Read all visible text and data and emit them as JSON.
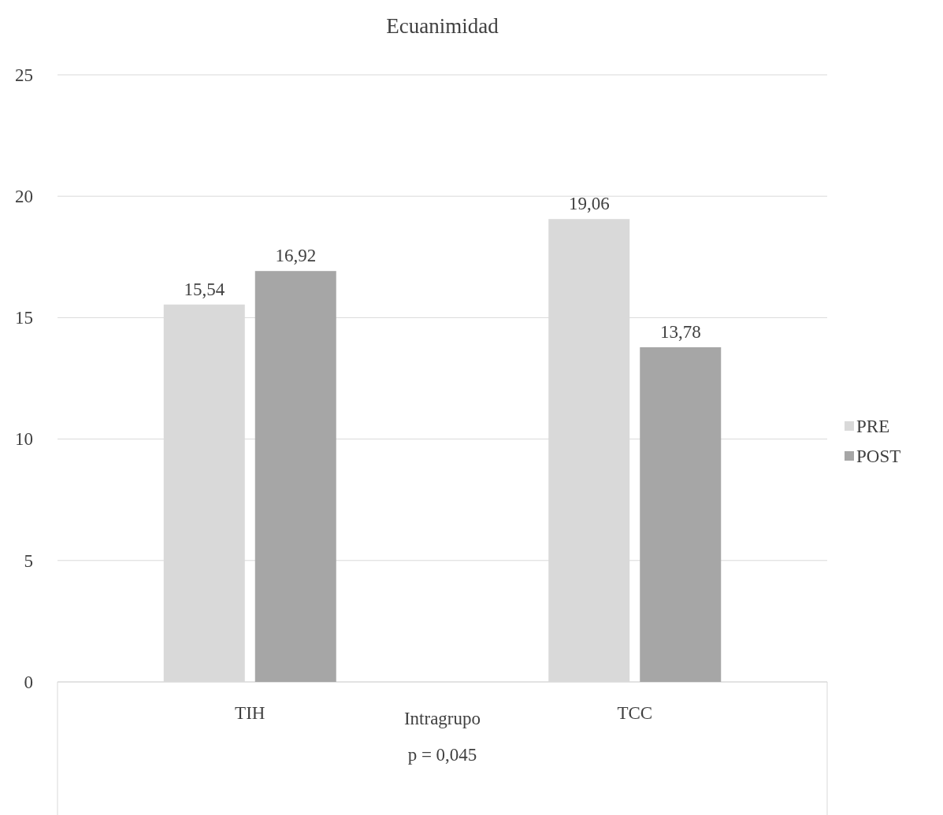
{
  "chart_data": {
    "type": "bar",
    "title": "Ecuanimidad",
    "xlabel": "Intragrupo",
    "annotations": [
      "p = 0,045"
    ],
    "categories": [
      "TIH",
      "TCC"
    ],
    "series": [
      {
        "name": "PRE",
        "color": "#d9d9d9",
        "values": [
          15.54,
          19.06
        ],
        "value_labels": [
          "15,54",
          "19,06"
        ]
      },
      {
        "name": "POST",
        "color": "#a6a6a6",
        "values": [
          16.92,
          13.78
        ],
        "value_labels": [
          "16,92",
          "13,78"
        ]
      }
    ],
    "ylim": [
      0,
      25
    ],
    "yticks": [
      0,
      5,
      10,
      15,
      20,
      25
    ],
    "grid": "y",
    "legend": "right"
  }
}
